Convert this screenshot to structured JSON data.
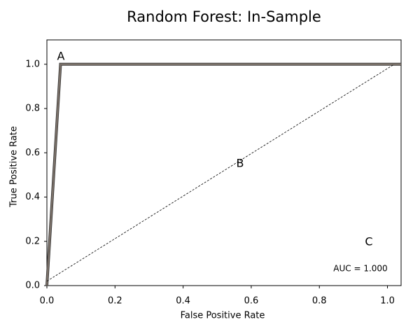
{
  "chart_data": {
    "type": "line",
    "title": "Random Forest: In-Sample",
    "x_label": "False Positive Rate",
    "y_label": "True Positive Rate",
    "series": [
      {
        "color": "#7a7068",
        "x": [
          0,
          0.04,
          1.04
        ],
        "values": [
          0,
          1.0,
          1.0
        ]
      },
      {
        "color": "#000000",
        "dashed": true,
        "x": [
          0,
          1.02
        ],
        "values": [
          0.02,
          1.0
        ]
      }
    ],
    "annotations": [
      "A",
      "B",
      "C",
      "AUC = 1.000"
    ],
    "xlim": [
      0,
      1.04
    ],
    "ylim": [
      0,
      1.11
    ],
    "xticks": [
      {
        "value": 0,
        "label": "0.0"
      },
      0.2,
      0.4,
      0.6,
      0.8,
      {
        "value": 1,
        "label": "1.0"
      }
    ],
    "yticks": [
      {
        "value": 0,
        "label": "0.0"
      },
      0.2,
      0.4,
      0.6,
      0.8,
      {
        "value": 1,
        "label": "1.0"
      }
    ]
  }
}
